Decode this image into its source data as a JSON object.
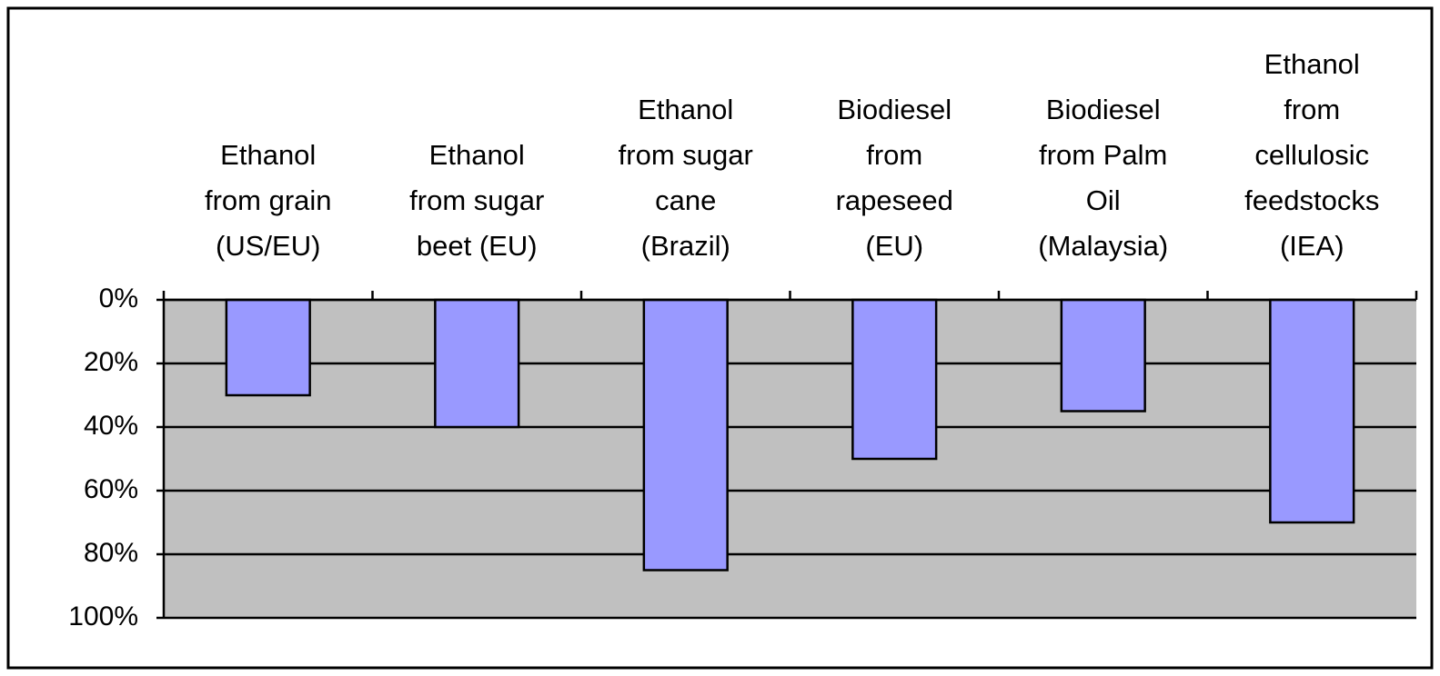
{
  "chart_data": {
    "type": "bar",
    "categories": [
      "Ethanol\nfrom grain\n(US/EU)",
      "Ethanol\nfrom sugar\nbeet (EU)",
      "Ethanol\nfrom sugar\ncane\n(Brazil)",
      "Biodiesel\nfrom\nrapeseed\n(EU)",
      "Biodiesel\nfrom Palm\nOil\n(Malaysia)",
      "Ethanol\nfrom\ncellulosic\nfeedstocks\n(IEA)"
    ],
    "values": [
      30,
      40,
      85,
      50,
      35,
      70
    ],
    "color": "#9999ff",
    "ylim": [
      0,
      100
    ],
    "y_inverted": true,
    "yticks": [
      {
        "value": 0,
        "label": "0%"
      },
      {
        "value": 20,
        "label": "20%"
      },
      {
        "value": 40,
        "label": "40%"
      },
      {
        "value": 60,
        "label": "60%"
      },
      {
        "value": 80,
        "label": "80%"
      },
      {
        "value": 100,
        "label": "100%"
      }
    ],
    "grid": true,
    "plot_background": "#c0c0c0"
  }
}
